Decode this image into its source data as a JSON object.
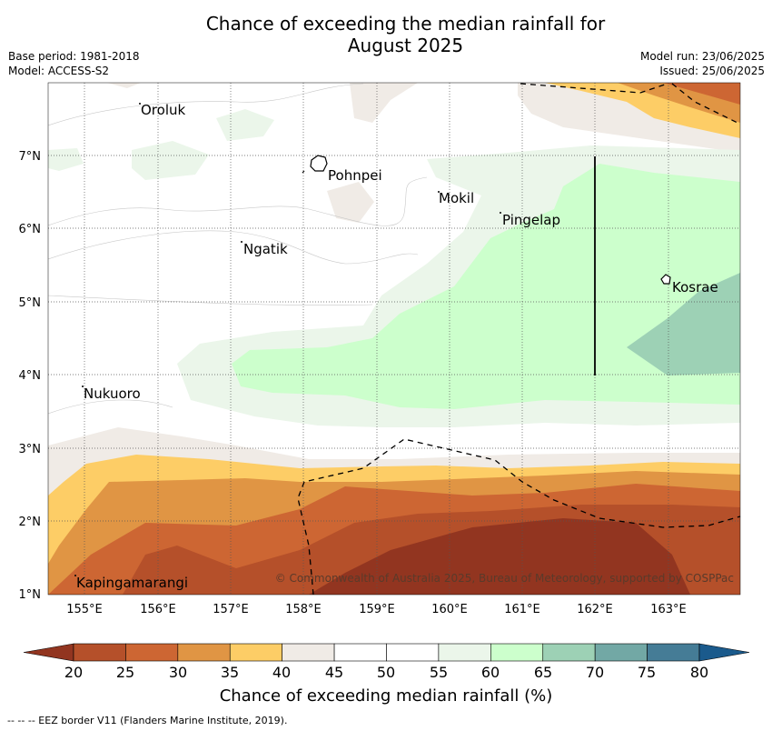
{
  "title_line1": "Chance of exceeding the median rainfall for",
  "title_line2": "August 2025",
  "base_period": "Base period: 1981-2018",
  "model": "Model: ACCESS-S2",
  "model_run": "Model run: 23/06/2025",
  "issued": "Issued: 25/06/2025",
  "places": {
    "oroluk": "Oroluk",
    "pohnpei": "Pohnpei",
    "mokil": "Mokil",
    "pingelap": "Pingelap",
    "ngatik": "Ngatik",
    "kosrae": "Kosrae",
    "nukuoro": "Nukuoro",
    "kapingamarangi": "Kapingamarangi"
  },
  "lat_ticks": [
    "7°N",
    "6°N",
    "5°N",
    "4°N",
    "3°N",
    "2°N",
    "1°N"
  ],
  "lon_ticks": [
    "155°E",
    "156°E",
    "157°E",
    "158°E",
    "159°E",
    "160°E",
    "161°E",
    "162°E",
    "163°E"
  ],
  "copyright": "© Commonwealth of Australia 2025, Bureau of Meteorology, supported by COSPPac",
  "colorbar": {
    "labels": [
      "20",
      "25",
      "30",
      "35",
      "40",
      "45",
      "50",
      "55",
      "60",
      "65",
      "70",
      "75",
      "80"
    ],
    "colors": [
      "#b5502a",
      "#cd6633",
      "#e09544",
      "#fdcd66",
      "#f0ebe6",
      "#ffffff",
      "#ffffff",
      "#ebf6ea",
      "#ccffcc",
      "#9dd1b5",
      "#72a8a5",
      "#457c96"
    ],
    "under_color": "#923520",
    "over_color": "#1a5a8c",
    "title": "Chance of exceeding median rainfall (%)"
  },
  "eez_note": "--  --  -- EEZ border V11 (Flanders Marine Institute, 2019)."
}
